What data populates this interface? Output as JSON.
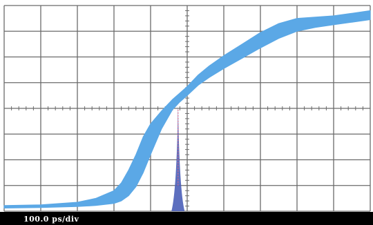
{
  "chart_data": {
    "type": "line",
    "title": "",
    "xlabel": "",
    "ylabel": "",
    "grid": true,
    "x_divisions": 10,
    "y_divisions": 8,
    "xlim": [
      0,
      10
    ],
    "ylim": [
      0,
      8
    ],
    "timebase_label": "100.0 ps/div",
    "series": [
      {
        "x": [
          0,
          1,
          2,
          2.5,
          3,
          3.2,
          3.4,
          3.6,
          3.8,
          4,
          4.3,
          4.6,
          4.8,
          5,
          5.3,
          5.6,
          6,
          6.5,
          7,
          7.5,
          8,
          8.5,
          9,
          9.5,
          10
        ],
        "y_low": [
          0.12,
          0.14,
          0.18,
          0.22,
          0.3,
          0.4,
          0.6,
          0.95,
          1.5,
          2.2,
          3.2,
          3.95,
          4.25,
          4.5,
          4.9,
          5.2,
          5.55,
          5.95,
          6.35,
          6.72,
          7.0,
          7.15,
          7.25,
          7.35,
          7.45
        ],
        "y_high": [
          0.22,
          0.25,
          0.35,
          0.5,
          0.8,
          1.1,
          1.6,
          2.2,
          2.9,
          3.4,
          3.9,
          4.35,
          4.6,
          4.85,
          5.3,
          5.65,
          6.05,
          6.5,
          6.95,
          7.3,
          7.5,
          7.55,
          7.6,
          7.7,
          7.8
        ]
      }
    ],
    "histogram": {
      "center_x": 4.75,
      "halfwidth": 0.18,
      "peak_y": 4.1,
      "center_mark_y": [
        1,
        4
      ]
    },
    "colors": {
      "trace": "#5ba8e6",
      "grid": "#6a6a6a",
      "background": "#ffffff",
      "histogram": "#4b5fb8",
      "histogram_center": "#d36a8a",
      "status_bar": "#000000",
      "status_text": "#ffffff"
    }
  }
}
